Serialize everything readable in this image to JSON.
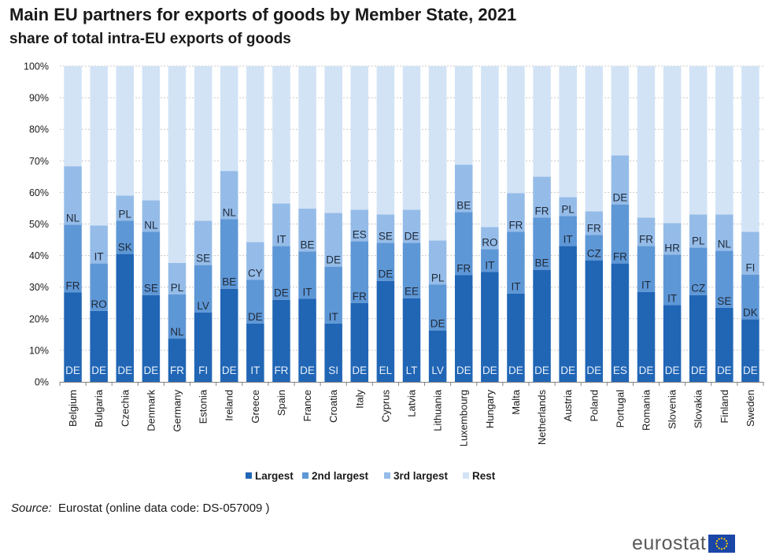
{
  "title": "Main EU partners for exports of goods by Member State, 2021",
  "subtitle": "share of total intra-EU exports of goods",
  "source_label": "Source:",
  "source_text": "Eurostat (online data code: DS-057009 )",
  "brand": "eurostat",
  "colors": {
    "largest": "#2166b5",
    "second": "#5e97d6",
    "third": "#95bce8",
    "rest": "#d2e3f6",
    "grid": "#c8c8c8",
    "axis": "#808080",
    "flag_blue": "#1a46a8",
    "flag_star": "#ffcc00"
  },
  "chart_data": {
    "type": "bar",
    "stacked": true,
    "ylim": [
      0,
      100
    ],
    "yticks": [
      "0%",
      "10%",
      "20%",
      "30%",
      "40%",
      "50%",
      "60%",
      "70%",
      "80%",
      "90%",
      "100%"
    ],
    "grid": true,
    "legend_position": "bottom",
    "categories": [
      "Belgium",
      "Bulgaria",
      "Czechia",
      "Denmark",
      "Germany",
      "Estonia",
      "Ireland",
      "Greece",
      "Spain",
      "France",
      "Croatia",
      "Italy",
      "Cyprus",
      "Latvia",
      "Lithuania",
      "Luxembourg",
      "Hungary",
      "Malta",
      "Netherlands",
      "Austria",
      "Poland",
      "Portugal",
      "Romania",
      "Slovenia",
      "Slovakia",
      "Finland",
      "Sweden"
    ],
    "series": [
      {
        "name": "Largest",
        "values": [
          28.3,
          22.5,
          40.5,
          27.5,
          13.7,
          22.0,
          29.5,
          18.5,
          26.0,
          26.3,
          18.5,
          25.0,
          32.0,
          26.5,
          16.3,
          33.8,
          34.8,
          28.0,
          35.5,
          43.0,
          38.5,
          37.5,
          28.5,
          24.3,
          27.5,
          23.5,
          19.8
        ],
        "labels": [
          "DE",
          "DE",
          "DE",
          "DE",
          "FR",
          "FI",
          "DE",
          "IT",
          "FR",
          "DE",
          "SI",
          "DE",
          "EL",
          "LT",
          "LV",
          "DE",
          "DE",
          "DE",
          "DE",
          "DE",
          "DE",
          "ES",
          "DE",
          "DE",
          "DE",
          "DE",
          "DE"
        ]
      },
      {
        "name": "2nd largest",
        "values": [
          21.5,
          15.0,
          10.5,
          20.0,
          14.0,
          15.0,
          22.0,
          13.8,
          17.0,
          15.0,
          18.0,
          19.5,
          12.0,
          17.5,
          14.5,
          20.0,
          7.2,
          19.5,
          16.5,
          9.5,
          8.0,
          18.7,
          14.5,
          16.0,
          15.0,
          18.0,
          14.2
        ],
        "labels": [
          "FR",
          "RO",
          "SK",
          "SE",
          "NL",
          "LV",
          "BE",
          "DE",
          "DE",
          "IT",
          "IT",
          "FR",
          "DE",
          "EE",
          "DE",
          "FR",
          "IT",
          "IT",
          "BE",
          "IT",
          "CZ",
          "FR",
          "IT",
          "IT",
          "CZ",
          "SE",
          "DK"
        ]
      },
      {
        "name": "3rd largest",
        "values": [
          18.5,
          12.0,
          8.0,
          10.0,
          10.0,
          14.0,
          15.3,
          12.0,
          13.5,
          13.6,
          17.0,
          10.0,
          9.0,
          10.5,
          14.0,
          15.0,
          7.0,
          12.3,
          13.0,
          6.0,
          7.5,
          15.5,
          9.0,
          10.0,
          10.5,
          11.5,
          13.5
        ],
        "labels": [
          "NL",
          "IT",
          "PL",
          "NL",
          "PL",
          "SE",
          "NL",
          "CY",
          "IT",
          "BE",
          "DE",
          "ES",
          "SE",
          "DE",
          "PL",
          "BE",
          "RO",
          "FR",
          "FR",
          "PL",
          "FR",
          "DE",
          "FR",
          "HR",
          "PL",
          "NL",
          "FI"
        ]
      },
      {
        "name": "Rest",
        "values": [
          31.7,
          50.5,
          41.0,
          42.5,
          62.3,
          49.0,
          33.2,
          55.7,
          43.5,
          45.1,
          46.5,
          45.5,
          47.0,
          45.5,
          55.2,
          31.2,
          51.0,
          40.2,
          35.0,
          41.5,
          46.0,
          28.3,
          48.0,
          49.7,
          47.0,
          47.0,
          52.5
        ],
        "labels": []
      }
    ]
  }
}
